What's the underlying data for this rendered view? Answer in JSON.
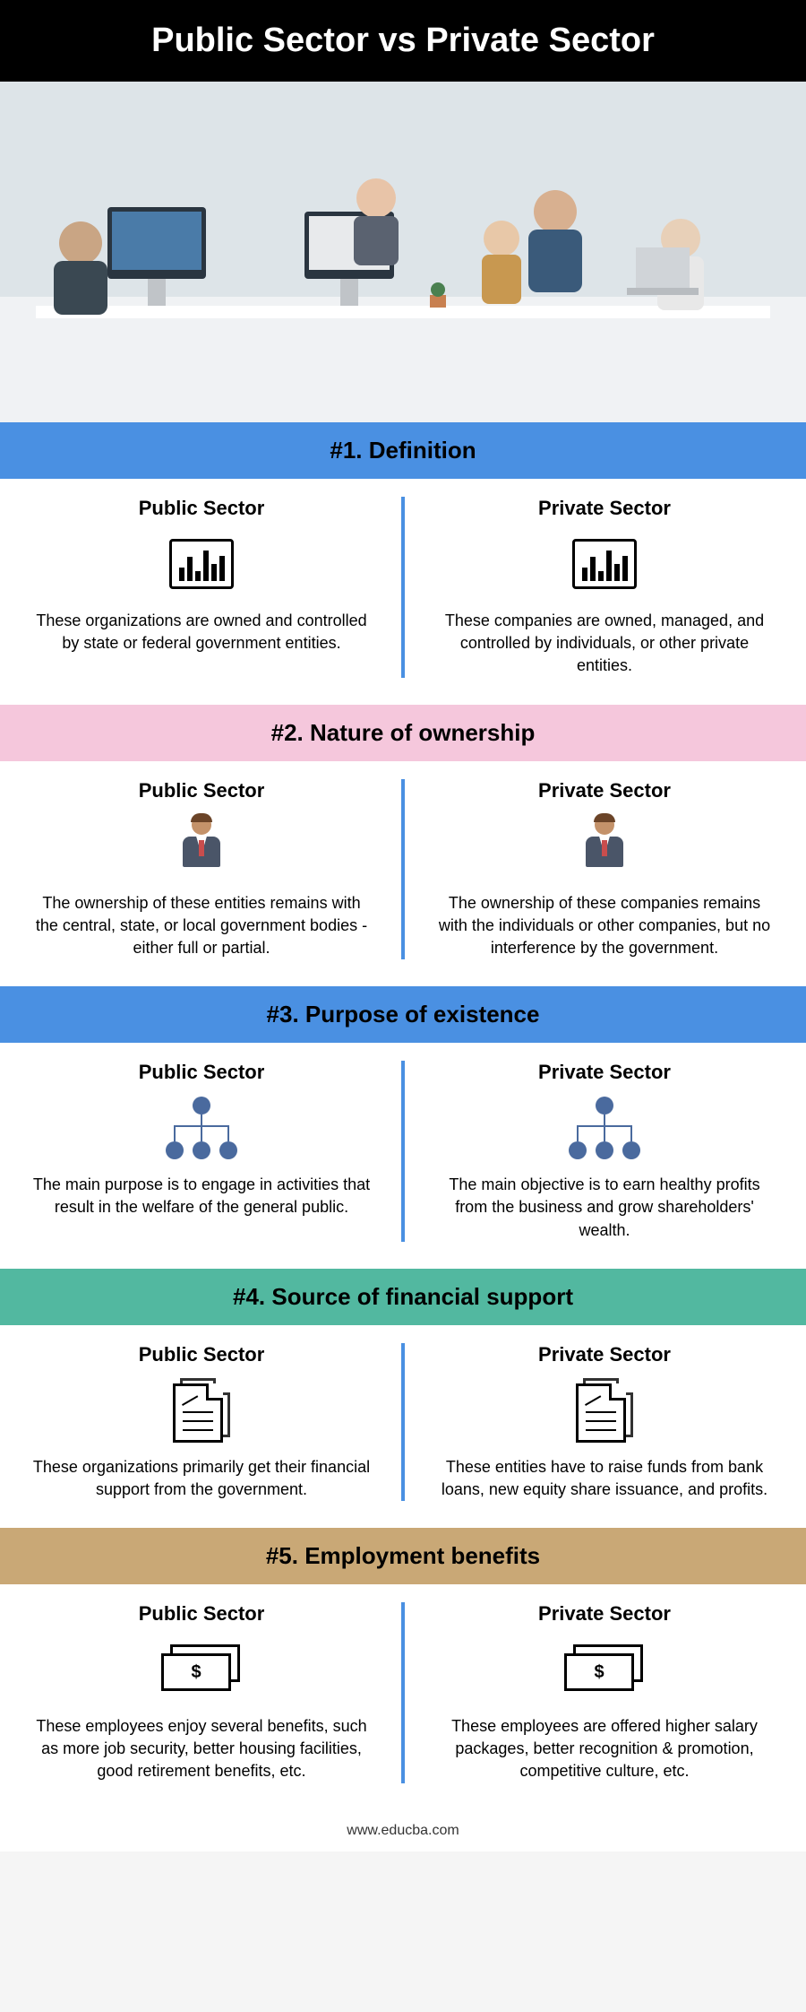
{
  "colors": {
    "blue": "#4a90e2",
    "pink": "#f5c7dc",
    "teal": "#52b8a0",
    "gold": "#c9a876",
    "black": "#000000"
  },
  "title": "Public Sector vs Private Sector",
  "hero_alt": "Office workers at desks with computers",
  "sections": [
    {
      "header": "#1. Definition",
      "header_class": "hdr-blue",
      "icon": "chart",
      "left_title": "Public Sector",
      "left_text": "These organizations are owned and controlled by state or federal government entities.",
      "right_title": "Private Sector",
      "right_text": "These companies are owned, managed, and controlled by individuals, or other private entities."
    },
    {
      "header": "#2. Nature of ownership",
      "header_class": "hdr-pink",
      "icon": "person",
      "left_title": "Public Sector",
      "left_text": "The ownership of these entities remains with the central, state, or local government bodies - either full or partial.",
      "right_title": "Private Sector",
      "right_text": "The ownership of these companies remains with the individuals or other companies, but no interference by the government."
    },
    {
      "header": "#3. Purpose of existence",
      "header_class": "hdr-blue",
      "icon": "org",
      "left_title": "Public Sector",
      "left_text": "The main purpose is to engage in activities that result in the welfare of the general public.",
      "right_title": "Private Sector",
      "right_text": "The main objective is to earn healthy profits from the business and grow shareholders' wealth."
    },
    {
      "header": "#4. Source of financial support",
      "header_class": "hdr-teal",
      "icon": "doc",
      "left_title": "Public Sector",
      "left_text": "These organizations primarily get their financial support from the government.",
      "right_title": "Private Sector",
      "right_text": "These entities have to raise funds from bank loans, new equity share issuance, and profits."
    },
    {
      "header": "#5. Employment benefits",
      "header_class": "hdr-gold",
      "icon": "money",
      "left_title": "Public Sector",
      "left_text": "These employees enjoy several benefits, such as more job security, better housing facilities, good retirement benefits, etc.",
      "right_title": "Private Sector",
      "right_text": "These employees are offered higher salary packages, better recognition & promotion, competitive culture, etc."
    }
  ],
  "footer": "www.educba.com"
}
